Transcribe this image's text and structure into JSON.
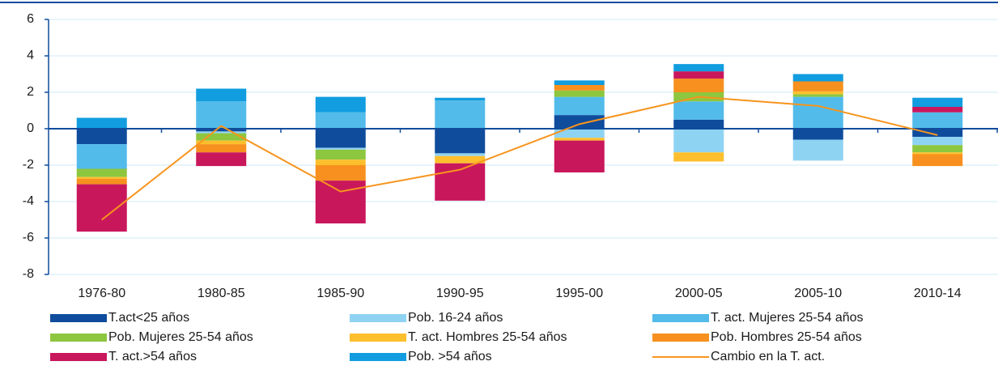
{
  "chart_data": {
    "type": "bar",
    "stacked": true,
    "categories": [
      "1976-80",
      "1980-85",
      "1985-90",
      "1990-95",
      "1995-00",
      "2000-05",
      "2005-10",
      "2010-14"
    ],
    "ylim": [
      -8,
      6
    ],
    "yticks": [
      -8,
      -6,
      -4,
      -2,
      0,
      2,
      4,
      6
    ],
    "grid": true,
    "series": [
      {
        "name": "T.act<25 años",
        "color": "#0f4c9c",
        "values": [
          -0.85,
          -0.15,
          -1.05,
          -1.35,
          0.75,
          0.5,
          -0.6,
          -0.45
        ]
      },
      {
        "name": "Pob. 16-24 años",
        "color": "#8fd3f3",
        "values": [
          0,
          -0.1,
          -0.1,
          -0.15,
          -0.5,
          -1.3,
          -1.15,
          -0.45
        ]
      },
      {
        "name": "T. act. Mujeres 25-54 años",
        "color": "#52bbea",
        "values": [
          -1.35,
          1.5,
          0.9,
          1.55,
          1.0,
          1.0,
          1.75,
          0.9
        ]
      },
      {
        "name": "Pob. Mujeres 25-54 años",
        "color": "#8dc63f",
        "values": [
          -0.45,
          -0.4,
          -0.55,
          0,
          0.35,
          0.5,
          0.15,
          -0.4
        ]
      },
      {
        "name": "T. act. Hombres 25-54 años",
        "color": "#fdbf2d",
        "values": [
          -0.1,
          -0.2,
          -0.3,
          -0.4,
          -0.15,
          -0.5,
          0.15,
          -0.1
        ]
      },
      {
        "name": "Pob. Hombres 25-54 años",
        "color": "#f7901e",
        "values": [
          -0.3,
          -0.45,
          -0.85,
          0,
          0.3,
          0.75,
          0.55,
          -0.65
        ]
      },
      {
        "name": "T. act.>54 años",
        "color": "#c9175c",
        "values": [
          -2.6,
          -0.75,
          -2.35,
          -2.05,
          -1.75,
          0.4,
          0,
          0.3
        ]
      },
      {
        "name": "Pob. >54 años",
        "color": "#119ddf",
        "values": [
          0.6,
          0.7,
          0.85,
          0.15,
          0.25,
          0.4,
          0.4,
          0.5
        ]
      },
      {
        "name": "Cambio en la T. act.",
        "color": "#f7941d",
        "kind": "line",
        "values": [
          -5.0,
          0.15,
          -3.45,
          -2.25,
          0.25,
          1.75,
          1.25,
          -0.35
        ]
      }
    ]
  }
}
